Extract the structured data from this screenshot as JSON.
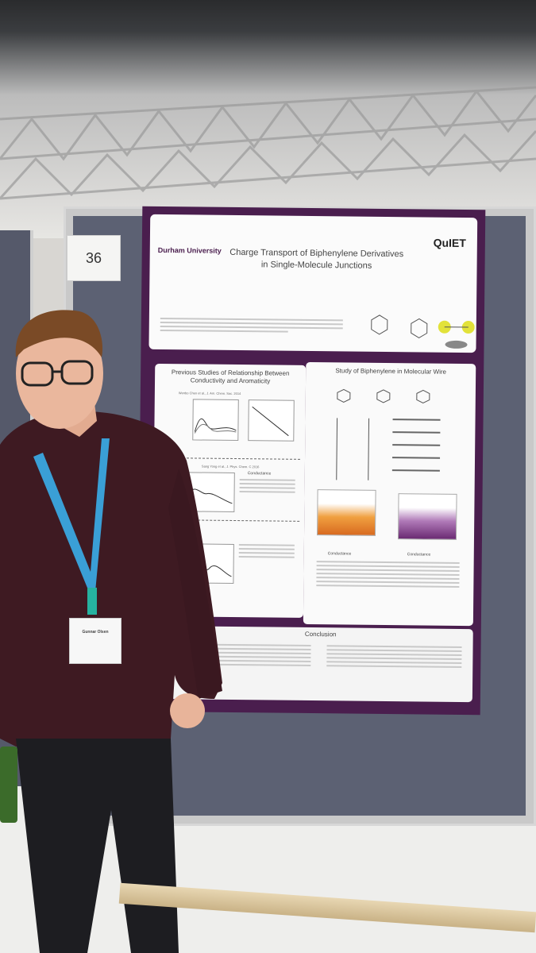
{
  "poster": {
    "board_number": "36",
    "university_logo": "Durham University",
    "brand_logo": "QuIET",
    "title_line_1": "Charge Transport of Biphenylene Derivatives",
    "title_line_2": "in Single-Molecule Junctions",
    "left_panel_title": "Previous Studies of Relationship Between Conductivity and Aromaticity",
    "right_panel_title": "Study of Biphenylene in Molecular Wire",
    "conclusion_title": "Conclusion",
    "ref_1": "Wenbo Chen et al., J. Am. Chem. Soc. 2014",
    "ref_2": "Sang Yong et al., J. Phys. Chem. C 2016",
    "table_header_left": "Conductance",
    "table_header_right": "Conductance"
  },
  "badge": {
    "name": "Gunnar Olsen"
  },
  "colors": {
    "poster_border": "#4a1e4e",
    "board": "#5c6173",
    "shirt": "#3e1a22",
    "lanyard": "#3a9fd6"
  }
}
